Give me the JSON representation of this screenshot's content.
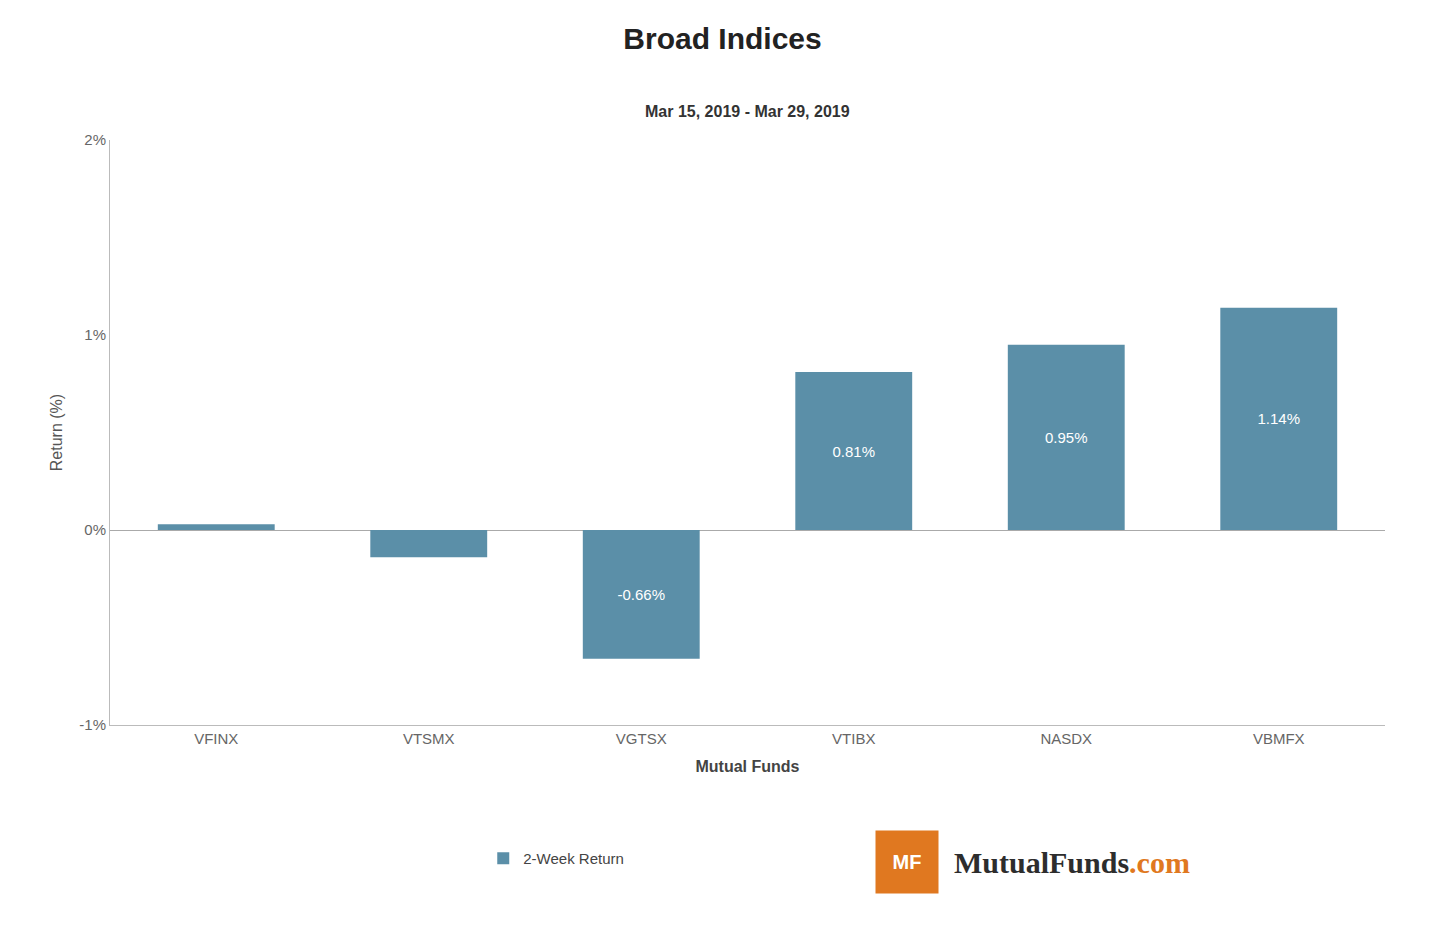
{
  "chart_data": {
    "type": "bar",
    "title": "Broad Indices",
    "subtitle": "Mar 15, 2019 - Mar 29, 2019",
    "xlabel": "Mutual Funds",
    "ylabel": "Return (%)",
    "categories": [
      "VFINX",
      "VTSMX",
      "VGTSX",
      "VTIBX",
      "NASDX",
      "VBMFX"
    ],
    "series": [
      {
        "name": "2-Week Return",
        "color": "#5b8fa8",
        "values": [
          0.03,
          -0.14,
          -0.66,
          0.81,
          0.95,
          1.14
        ],
        "value_labels": [
          null,
          null,
          "-0.66%",
          "0.81%",
          "0.95%",
          "1.14%"
        ]
      }
    ],
    "data_labels": true,
    "ylim": [
      -1.0,
      2.0
    ],
    "yticks": [
      {
        "value": -1.0,
        "label": "-1%"
      },
      {
        "value": 0.0,
        "label": "0%"
      },
      {
        "value": 1.0,
        "label": "1%"
      },
      {
        "value": 2.0,
        "label": "2%"
      }
    ],
    "grid": false,
    "legend": "bottom",
    "annotations": [
      {
        "text": "MF",
        "color": "#e07820"
      },
      {
        "text": "MutualFunds",
        "color": "#2d2d2d"
      },
      {
        "text": ".com",
        "color": "#e07820"
      }
    ]
  }
}
